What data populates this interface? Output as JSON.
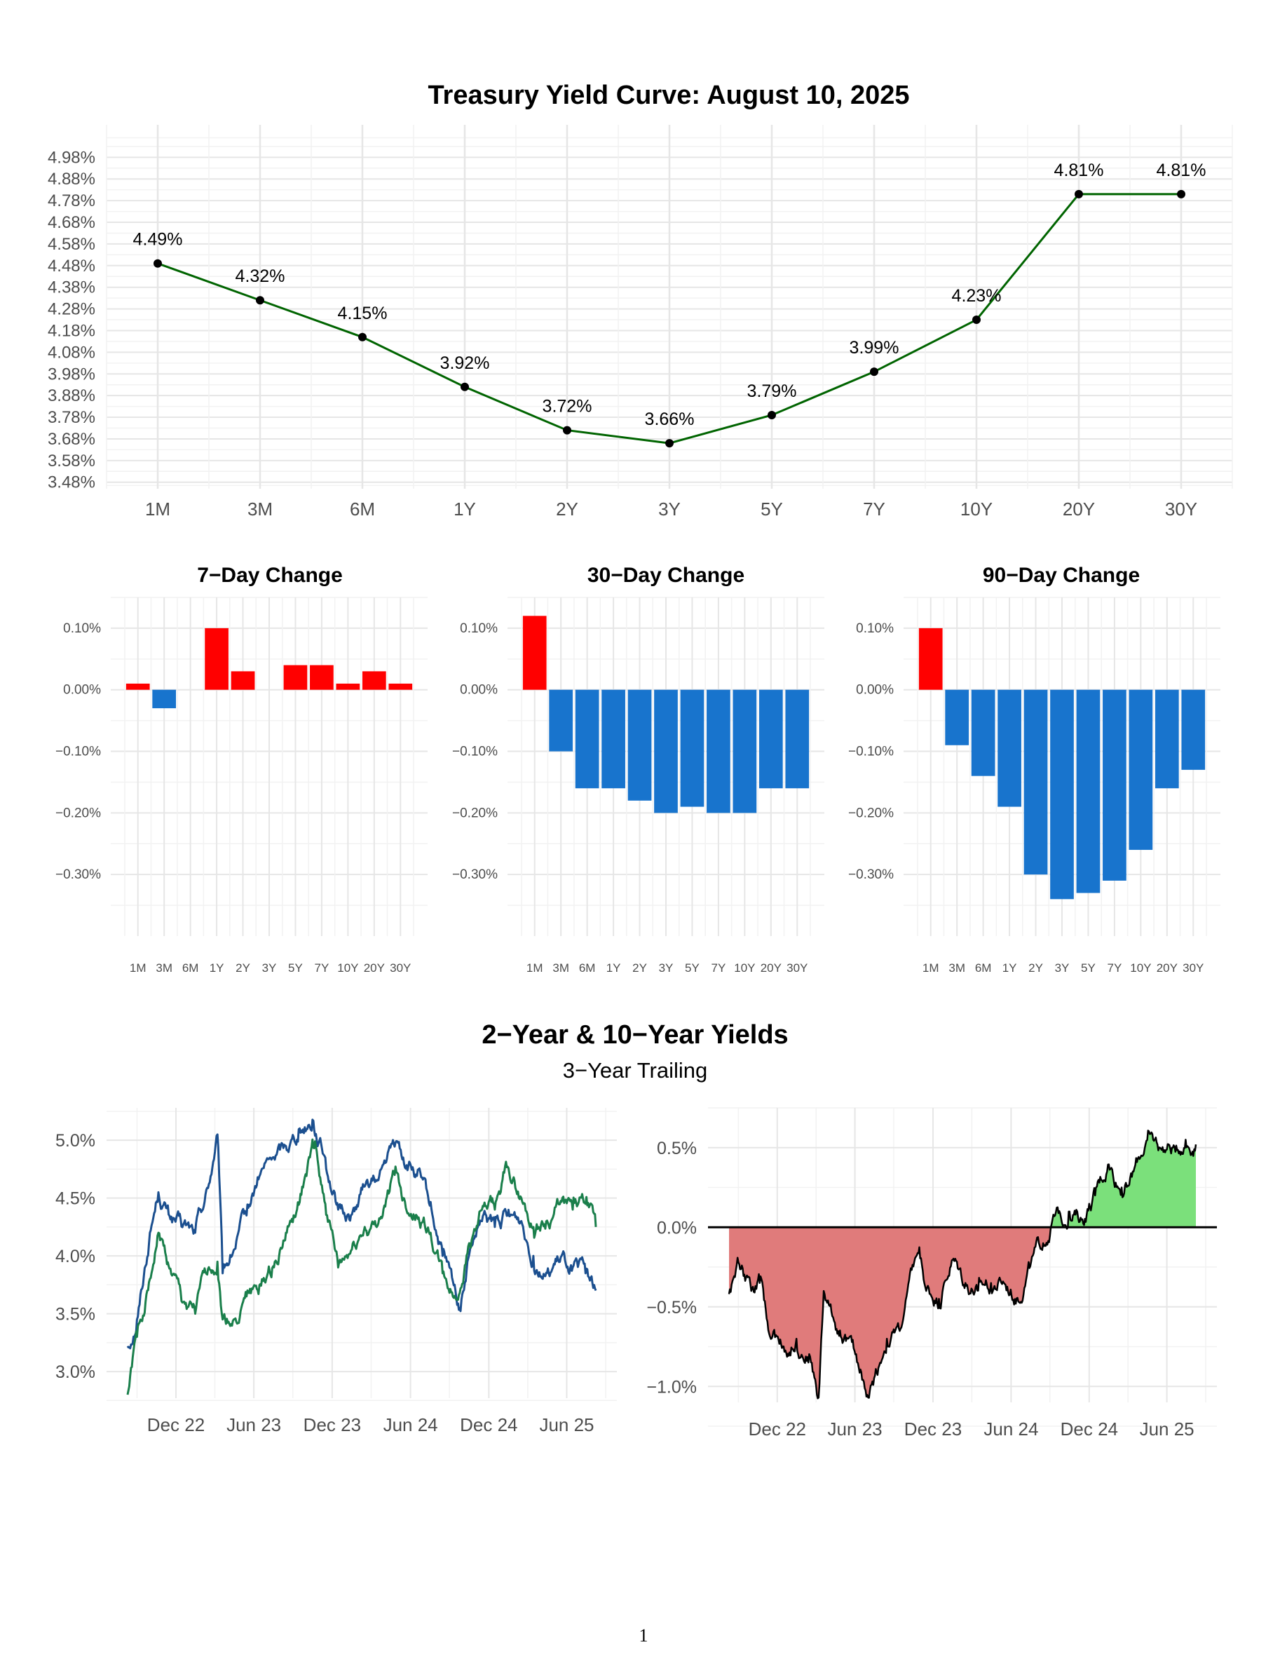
{
  "page_number": "1",
  "chart_data": [
    {
      "id": "yield-curve",
      "type": "line",
      "title": "Treasury Yield Curve: August 10, 2025",
      "categories": [
        "1M",
        "3M",
        "6M",
        "1Y",
        "2Y",
        "3Y",
        "5Y",
        "7Y",
        "10Y",
        "20Y",
        "30Y"
      ],
      "values": [
        4.49,
        4.32,
        4.15,
        3.92,
        3.72,
        3.66,
        3.79,
        3.99,
        4.23,
        4.81,
        4.81
      ],
      "data_labels": [
        "4.49%",
        "4.32%",
        "4.15%",
        "3.92%",
        "3.72%",
        "3.66%",
        "3.79%",
        "3.99%",
        "4.23%",
        "4.81%",
        "4.81%"
      ],
      "y_ticks": [
        3.48,
        3.58,
        3.68,
        3.78,
        3.88,
        3.98,
        4.08,
        4.18,
        4.28,
        4.38,
        4.48,
        4.58,
        4.68,
        4.78,
        4.88,
        4.98
      ],
      "y_tick_labels": [
        "3.48%",
        "3.58%",
        "3.68%",
        "3.78%",
        "3.88%",
        "3.98%",
        "4.08%",
        "4.18%",
        "4.28%",
        "4.38%",
        "4.48%",
        "4.58%",
        "4.68%",
        "4.78%",
        "4.88%",
        "4.98%"
      ],
      "ylim": [
        3.45,
        5.13
      ],
      "line_color": "#006400",
      "point_color": "#000000",
      "grid": true
    },
    {
      "id": "change-7d",
      "type": "bar",
      "title": "7−Day Change",
      "categories": [
        "1M",
        "3M",
        "6M",
        "1Y",
        "2Y",
        "3Y",
        "5Y",
        "7Y",
        "10Y",
        "20Y",
        "30Y"
      ],
      "values": [
        0.01,
        -0.03,
        0.0,
        0.1,
        0.03,
        0.0,
        0.04,
        0.04,
        0.01,
        0.03,
        0.01
      ],
      "y_ticks": [
        -0.3,
        -0.2,
        -0.1,
        0.0,
        0.1
      ],
      "y_tick_labels": [
        "−0.30%",
        "−0.20%",
        "−0.10%",
        "0.00%",
        "0.10%"
      ],
      "ylim": [
        -0.4,
        0.15
      ],
      "positive_color": "#ff0000",
      "negative_color": "#1874cd",
      "grid": true
    },
    {
      "id": "change-30d",
      "type": "bar",
      "title": "30−Day Change",
      "categories": [
        "1M",
        "3M",
        "6M",
        "1Y",
        "2Y",
        "3Y",
        "5Y",
        "7Y",
        "10Y",
        "20Y",
        "30Y"
      ],
      "values": [
        0.12,
        -0.1,
        -0.16,
        -0.16,
        -0.18,
        -0.2,
        -0.19,
        -0.2,
        -0.2,
        -0.16,
        -0.16
      ],
      "y_ticks": [
        -0.3,
        -0.2,
        -0.1,
        0.0,
        0.1
      ],
      "y_tick_labels": [
        "−0.30%",
        "−0.20%",
        "−0.10%",
        "0.00%",
        "0.10%"
      ],
      "ylim": [
        -0.4,
        0.15
      ],
      "positive_color": "#ff0000",
      "negative_color": "#1874cd",
      "grid": true
    },
    {
      "id": "change-90d",
      "type": "bar",
      "title": "90−Day Change",
      "categories": [
        "1M",
        "3M",
        "6M",
        "1Y",
        "2Y",
        "3Y",
        "5Y",
        "7Y",
        "10Y",
        "20Y",
        "30Y"
      ],
      "values": [
        0.1,
        -0.09,
        -0.14,
        -0.19,
        -0.3,
        -0.34,
        -0.33,
        -0.31,
        -0.26,
        -0.16,
        -0.13
      ],
      "y_ticks": [
        -0.3,
        -0.2,
        -0.1,
        0.0,
        0.1
      ],
      "y_tick_labels": [
        "−0.30%",
        "−0.20%",
        "−0.10%",
        "0.00%",
        "0.10%"
      ],
      "ylim": [
        -0.4,
        0.15
      ],
      "positive_color": "#ff0000",
      "negative_color": "#1874cd",
      "grid": true
    },
    {
      "id": "yields-2y-10y",
      "type": "line",
      "title": "2−Year & 10−Year Yields",
      "subtitle": "3−Year Trailing",
      "x_range": [
        "2022-08-10",
        "2025-08-08"
      ],
      "x_ticks": [
        "2022-12-01",
        "2023-06-01",
        "2023-12-01",
        "2024-06-01",
        "2024-12-01",
        "2025-06-01"
      ],
      "x_tick_labels": [
        "Dec 22",
        "Jun 23",
        "Dec 23",
        "Jun 24",
        "Dec 24",
        "Jun 25"
      ],
      "y_ticks": [
        3.0,
        3.5,
        4.0,
        4.5,
        5.0
      ],
      "y_tick_labels": [
        "3.0%",
        "3.5%",
        "4.0%",
        "4.5%",
        "5.0%"
      ],
      "ylim": [
        2.77,
        5.28
      ],
      "grid": true,
      "series": [
        {
          "color": "#1b4f8f",
          "x": [
            "2022-08-10",
            "2022-09-01",
            "2022-10-01",
            "2022-10-21",
            "2022-11-15",
            "2022-12-15",
            "2023-01-15",
            "2023-02-15",
            "2023-03-08",
            "2023-03-20",
            "2023-04-15",
            "2023-05-15",
            "2023-06-15",
            "2023-07-15",
            "2023-08-15",
            "2023-09-15",
            "2023-10-17",
            "2023-11-15",
            "2023-12-15",
            "2024-01-15",
            "2024-02-15",
            "2024-03-15",
            "2024-04-30",
            "2024-05-15",
            "2024-06-15",
            "2024-07-15",
            "2024-08-15",
            "2024-09-24",
            "2024-10-15",
            "2024-11-15",
            "2024-12-15",
            "2025-01-13",
            "2025-02-15",
            "2025-03-15",
            "2025-04-15",
            "2025-05-15",
            "2025-06-15",
            "2025-07-15",
            "2025-08-08"
          ],
          "y": [
            3.22,
            3.45,
            4.2,
            4.55,
            4.35,
            4.25,
            4.2,
            4.6,
            5.05,
            3.85,
            4.05,
            4.35,
            4.7,
            4.85,
            4.95,
            5.1,
            5.18,
            4.85,
            4.4,
            4.35,
            4.6,
            4.65,
            5.0,
            4.85,
            4.7,
            4.45,
            4.0,
            3.55,
            4.0,
            4.3,
            4.25,
            4.35,
            4.3,
            4.0,
            3.85,
            3.95,
            3.9,
            3.85,
            3.7
          ]
        },
        {
          "color": "#1a7f4b",
          "x": [
            "2022-08-10",
            "2022-09-01",
            "2022-10-01",
            "2022-10-21",
            "2022-11-15",
            "2022-12-15",
            "2023-01-15",
            "2023-02-15",
            "2023-03-08",
            "2023-03-20",
            "2023-04-15",
            "2023-05-15",
            "2023-06-15",
            "2023-07-15",
            "2023-08-15",
            "2023-09-15",
            "2023-10-19",
            "2023-11-15",
            "2023-12-15",
            "2024-01-15",
            "2024-02-15",
            "2024-03-15",
            "2024-04-25",
            "2024-05-15",
            "2024-06-15",
            "2024-07-15",
            "2024-08-15",
            "2024-09-16",
            "2024-10-15",
            "2024-11-15",
            "2024-12-15",
            "2025-01-13",
            "2025-02-15",
            "2025-03-15",
            "2025-04-15",
            "2025-05-15",
            "2025-06-15",
            "2025-07-15",
            "2025-08-08"
          ],
          "y": [
            2.8,
            3.3,
            3.8,
            4.2,
            3.9,
            3.6,
            3.5,
            3.9,
            3.95,
            3.45,
            3.45,
            3.65,
            3.75,
            3.9,
            4.2,
            4.45,
            4.95,
            4.45,
            3.9,
            4.05,
            4.25,
            4.25,
            4.7,
            4.5,
            4.35,
            4.2,
            3.85,
            3.62,
            4.1,
            4.4,
            4.4,
            4.78,
            4.5,
            4.25,
            4.3,
            4.45,
            4.4,
            4.45,
            4.25
          ]
        }
      ]
    },
    {
      "id": "spread-10y-2y",
      "type": "area",
      "x_range": [
        "2022-08-10",
        "2025-08-08"
      ],
      "x_ticks": [
        "2022-12-01",
        "2023-06-01",
        "2023-12-01",
        "2024-06-01",
        "2024-12-01",
        "2025-06-01"
      ],
      "x_tick_labels": [
        "Dec 22",
        "Jun 23",
        "Dec 23",
        "Jun 24",
        "Dec 24",
        "Jun 25"
      ],
      "y_ticks": [
        -1.0,
        -0.5,
        0.0,
        0.5
      ],
      "y_tick_labels": [
        "−1.0%",
        "−0.5%",
        "0.0%",
        "0.5%"
      ],
      "ylim": [
        -1.1,
        0.75
      ],
      "grid": true,
      "positive_fill": "#7be07b",
      "negative_fill": "#e07b7b",
      "line_color": "#000000",
      "x": [
        "2022-08-10",
        "2022-09-01",
        "2022-10-01",
        "2022-10-21",
        "2022-11-15",
        "2022-12-15",
        "2023-01-15",
        "2023-02-15",
        "2023-03-08",
        "2023-03-20",
        "2023-04-15",
        "2023-05-15",
        "2023-06-15",
        "2023-07-03",
        "2023-08-15",
        "2023-09-15",
        "2023-10-27",
        "2023-11-15",
        "2023-12-15",
        "2024-01-15",
        "2024-02-15",
        "2024-03-15",
        "2024-04-15",
        "2024-05-15",
        "2024-06-15",
        "2024-07-15",
        "2024-08-15",
        "2024-09-06",
        "2024-10-15",
        "2024-11-15",
        "2024-12-15",
        "2025-01-15",
        "2025-02-15",
        "2025-03-15",
        "2025-04-15",
        "2025-05-15",
        "2025-06-15",
        "2025-07-15",
        "2025-08-08"
      ],
      "y": [
        -0.42,
        -0.22,
        -0.4,
        -0.35,
        -0.7,
        -0.75,
        -0.7,
        -0.8,
        -1.07,
        -0.4,
        -0.6,
        -0.7,
        -0.9,
        -1.08,
        -0.7,
        -0.65,
        -0.15,
        -0.4,
        -0.45,
        -0.2,
        -0.35,
        -0.4,
        -0.35,
        -0.35,
        -0.45,
        -0.25,
        -0.1,
        0.05,
        0.1,
        0.05,
        0.2,
        0.4,
        0.25,
        0.35,
        0.55,
        0.5,
        0.5,
        0.55,
        0.52
      ]
    }
  ]
}
